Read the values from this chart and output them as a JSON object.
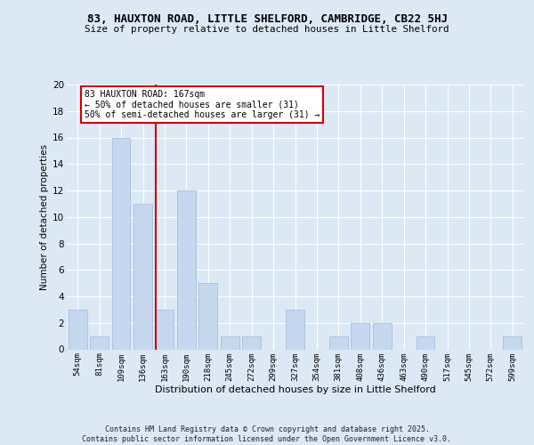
{
  "title1": "83, HAUXTON ROAD, LITTLE SHELFORD, CAMBRIDGE, CB22 5HJ",
  "title2": "Size of property relative to detached houses in Little Shelford",
  "xlabel": "Distribution of detached houses by size in Little Shelford",
  "ylabel": "Number of detached properties",
  "categories": [
    "54sqm",
    "81sqm",
    "109sqm",
    "136sqm",
    "163sqm",
    "190sqm",
    "218sqm",
    "245sqm",
    "272sqm",
    "299sqm",
    "327sqm",
    "354sqm",
    "381sqm",
    "408sqm",
    "436sqm",
    "463sqm",
    "490sqm",
    "517sqm",
    "545sqm",
    "572sqm",
    "599sqm"
  ],
  "values": [
    3,
    1,
    16,
    11,
    3,
    12,
    5,
    1,
    1,
    0,
    3,
    0,
    1,
    2,
    2,
    0,
    1,
    0,
    0,
    0,
    1
  ],
  "bar_color": "#c5d8f0",
  "bar_edge_color": "#a0b8d8",
  "subject_line_idx": 4,
  "subject_line_color": "#cc0000",
  "annotation_text": "83 HAUXTON ROAD: 167sqm\n← 50% of detached houses are smaller (31)\n50% of semi-detached houses are larger (31) →",
  "annotation_box_color": "#ffffff",
  "annotation_box_edge": "#cc0000",
  "ylim": [
    0,
    20
  ],
  "yticks": [
    0,
    2,
    4,
    6,
    8,
    10,
    12,
    14,
    16,
    18,
    20
  ],
  "background_color": "#dce9f5",
  "plot_background": "#dce9f5",
  "grid_color": "#ffffff",
  "footer": "Contains HM Land Registry data © Crown copyright and database right 2025.\nContains public sector information licensed under the Open Government Licence v3.0."
}
